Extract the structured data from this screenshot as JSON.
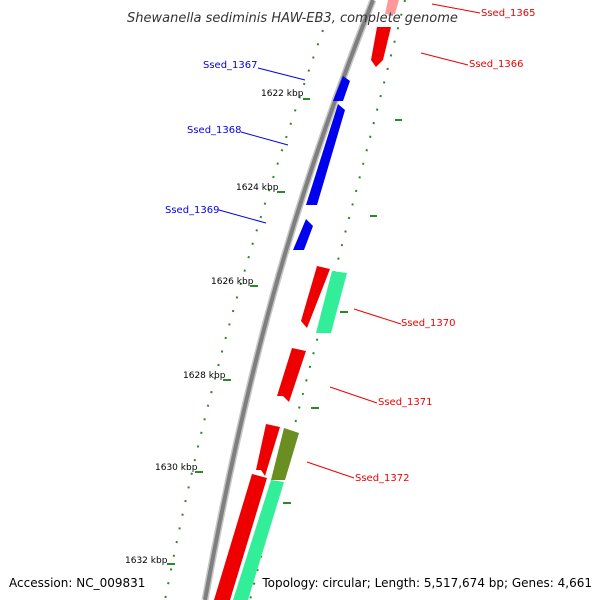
{
  "title": "Shewanella sediminis HAW-EB3, complete genome",
  "accession": "Accession: NC_009831",
  "summary": "Topology: circular; Length: 5,517,674 bp; Genes: 4,661",
  "colors": {
    "backbone": "#888888",
    "tick": "#2a8a2a",
    "reverse_gene": "#0000ee",
    "forward_gene": "#ee0000",
    "rrna_teal": "#33ee99",
    "olive": "#6b8e23"
  },
  "kbp_ticks": [
    {
      "label": "1622 kbp"
    },
    {
      "label": "1624 kbp"
    },
    {
      "label": "1626 kbp"
    },
    {
      "label": "1628 kbp"
    },
    {
      "label": "1630 kbp"
    },
    {
      "label": "1632 kbp"
    }
  ],
  "genes": [
    {
      "name": "Ssed_1365",
      "strand": "forward"
    },
    {
      "name": "Ssed_1366",
      "strand": "forward"
    },
    {
      "name": "Ssed_1367",
      "strand": "reverse"
    },
    {
      "name": "Ssed_1368",
      "strand": "reverse"
    },
    {
      "name": "Ssed_1369",
      "strand": "reverse"
    },
    {
      "name": "Ssed_1370",
      "strand": "forward"
    },
    {
      "name": "Ssed_1371",
      "strand": "forward"
    },
    {
      "name": "Ssed_1372",
      "strand": "forward"
    }
  ]
}
